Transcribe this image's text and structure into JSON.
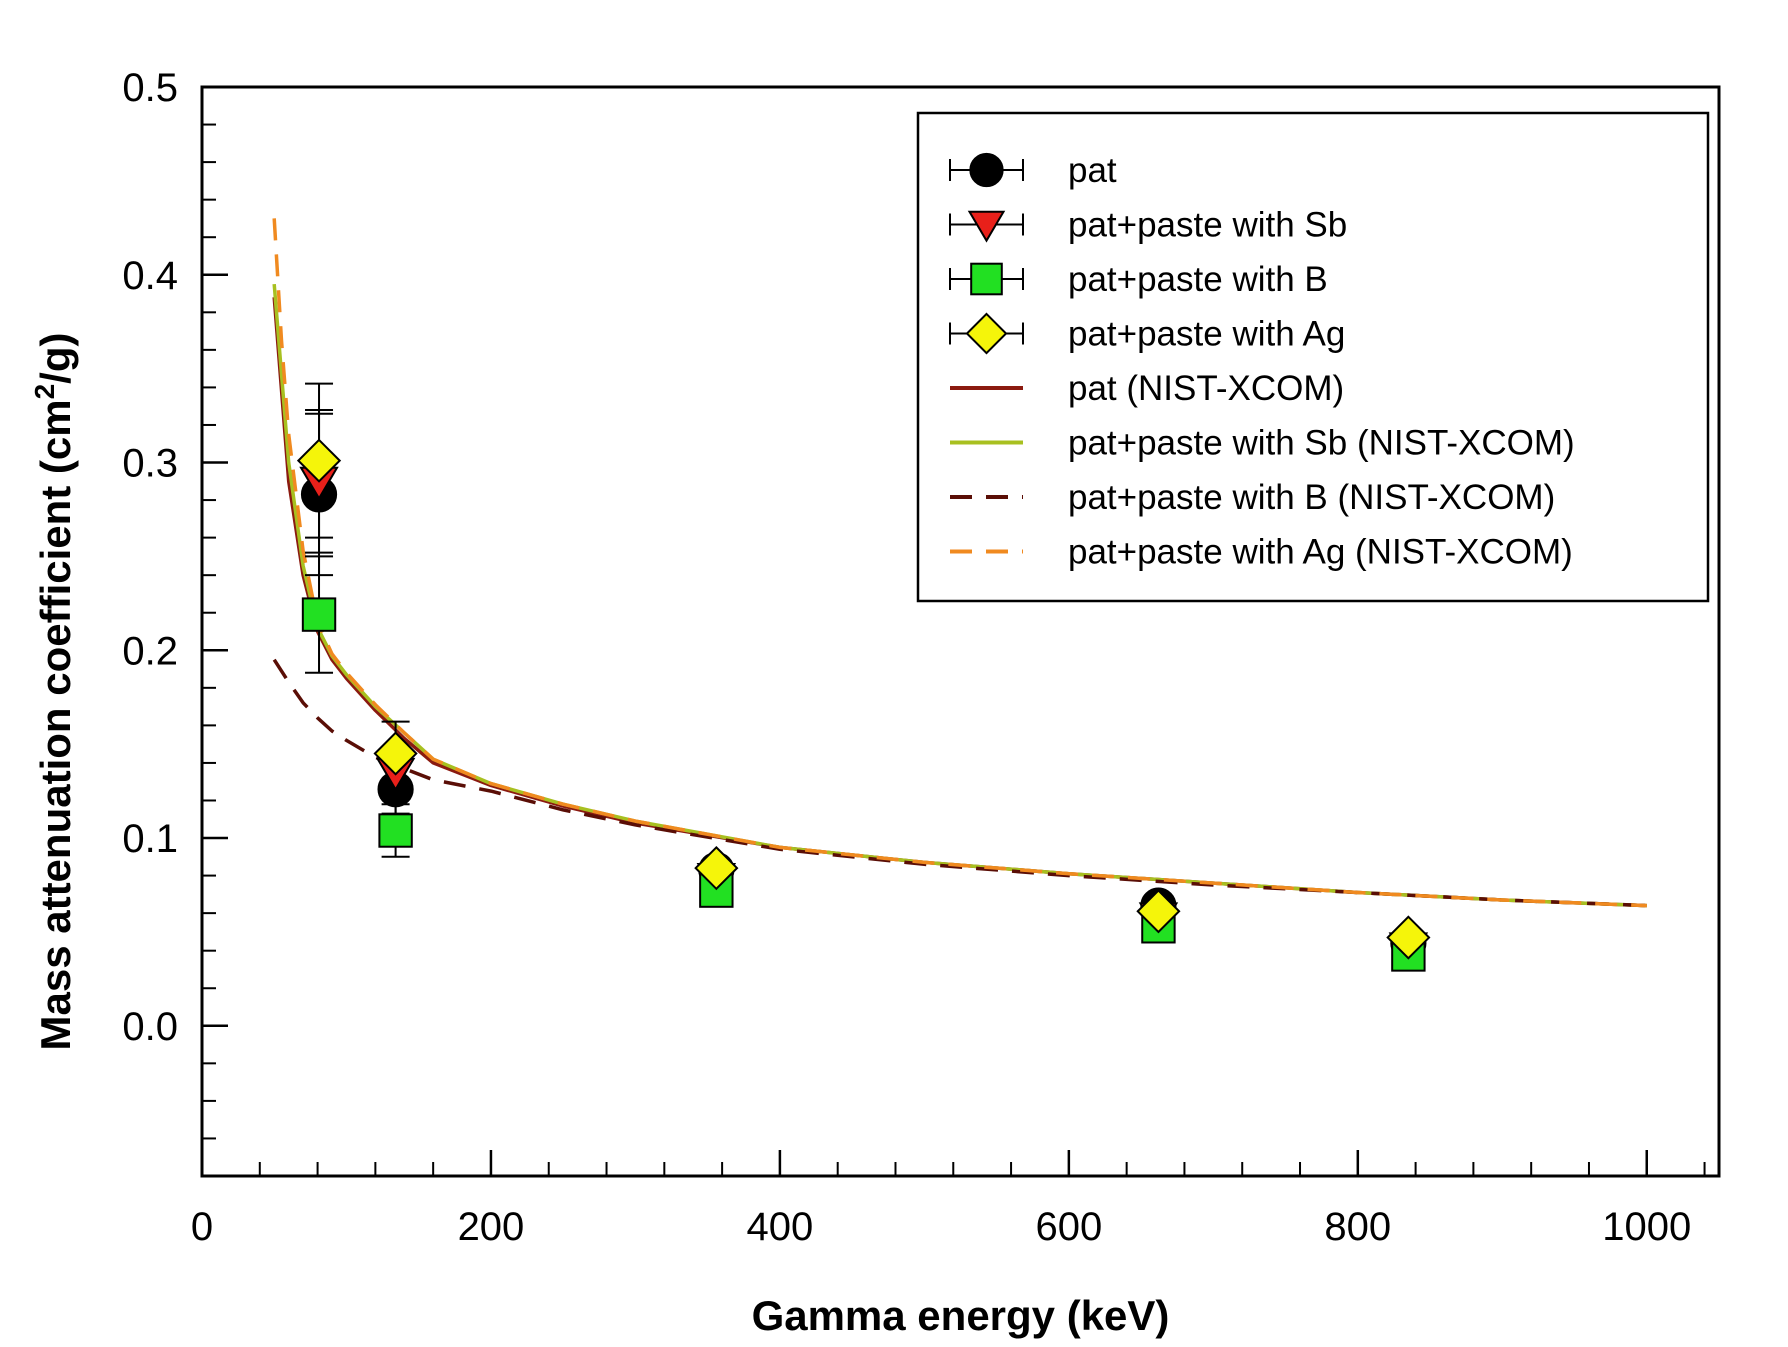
{
  "chart_data": {
    "type": "scatter",
    "title": "",
    "xlabel": "Gamma energy (keV)",
    "ylabel_main": "Mass attenuation coefficient (cm",
    "ylabel_sup": "2",
    "ylabel_end": "/g)",
    "xlim": [
      0,
      1050
    ],
    "ylim": [
      -0.08,
      0.5
    ],
    "x_major_ticks": [
      0,
      200,
      400,
      600,
      800,
      1000
    ],
    "x_tick_labels": [
      "0",
      "200",
      "400",
      "600",
      "800",
      "1000"
    ],
    "x_minor_step": 40,
    "y_major_ticks": [
      0.0,
      0.1,
      0.2,
      0.3,
      0.4,
      0.5
    ],
    "y_tick_labels": [
      "0.0",
      "0.1",
      "0.2",
      "0.3",
      "0.4",
      "0.5"
    ],
    "y_minor_step": 0.02,
    "legend_position": "top-right",
    "points_series": [
      {
        "name": "pat",
        "marker": "circle",
        "color": "#000000",
        "points": [
          {
            "x": 81,
            "y": 0.283,
            "err": 0.043
          },
          {
            "x": 134,
            "y": 0.126,
            "err": 0.013
          },
          {
            "x": 356,
            "y": 0.083,
            "err": 0.004
          },
          {
            "x": 662,
            "y": 0.064,
            "err": 0.003
          },
          {
            "x": 835,
            "y": 0.044,
            "err": 0.002
          }
        ]
      },
      {
        "name": "pat+paste with Sb",
        "marker": "triangle-down",
        "color": "#e8201a",
        "points": [
          {
            "x": 81,
            "y": 0.29,
            "err": 0.038
          },
          {
            "x": 134,
            "y": 0.135,
            "err": 0.012
          },
          {
            "x": 356,
            "y": 0.079,
            "err": 0.004
          },
          {
            "x": 662,
            "y": 0.058,
            "err": 0.003
          },
          {
            "x": 835,
            "y": 0.042,
            "err": 0.002
          }
        ]
      },
      {
        "name": "pat+paste with B",
        "marker": "square",
        "color": "#22e022",
        "points": [
          {
            "x": 81,
            "y": 0.219,
            "err": 0.031
          },
          {
            "x": 134,
            "y": 0.104,
            "err": 0.014
          },
          {
            "x": 356,
            "y": 0.072,
            "err": 0.004
          },
          {
            "x": 662,
            "y": 0.053,
            "err": 0.003
          },
          {
            "x": 835,
            "y": 0.038,
            "err": 0.002
          }
        ]
      },
      {
        "name": "pat+paste with Ag",
        "marker": "diamond",
        "color": "#f5f50a",
        "points": [
          {
            "x": 81,
            "y": 0.301,
            "err": 0.041
          },
          {
            "x": 134,
            "y": 0.145,
            "err": 0.017
          },
          {
            "x": 356,
            "y": 0.084,
            "err": 0.004
          },
          {
            "x": 662,
            "y": 0.061,
            "err": 0.003
          },
          {
            "x": 835,
            "y": 0.047,
            "err": 0.002
          }
        ]
      }
    ],
    "line_series": [
      {
        "name": "pat (NIST-XCOM)",
        "style": "solid",
        "color": "#8b1a10",
        "x": [
          50,
          60,
          70,
          80,
          90,
          100,
          120,
          140,
          160,
          200,
          250,
          300,
          400,
          500,
          600,
          700,
          800,
          900,
          1000
        ],
        "y": [
          0.388,
          0.29,
          0.24,
          0.21,
          0.195,
          0.185,
          0.168,
          0.153,
          0.14,
          0.128,
          0.117,
          0.108,
          0.095,
          0.087,
          0.081,
          0.076,
          0.071,
          0.067,
          0.064
        ]
      },
      {
        "name": "pat+paste with Sb (NIST-XCOM)",
        "style": "solid",
        "color": "#a8c020",
        "x": [
          50,
          60,
          70,
          80,
          90,
          100,
          120,
          140,
          160,
          200,
          250,
          300,
          400,
          500,
          600,
          700,
          800,
          900,
          1000
        ],
        "y": [
          0.395,
          0.3,
          0.245,
          0.212,
          0.197,
          0.187,
          0.17,
          0.156,
          0.142,
          0.129,
          0.118,
          0.109,
          0.095,
          0.087,
          0.081,
          0.076,
          0.071,
          0.067,
          0.064
        ]
      },
      {
        "name": "pat+paste with B (NIST-XCOM)",
        "style": "dashed",
        "color": "#5a0e06",
        "x": [
          50,
          60,
          70,
          80,
          90,
          100,
          120,
          140,
          160,
          200,
          250,
          300,
          400,
          500,
          600,
          700,
          800,
          900,
          1000
        ],
        "y": [
          0.195,
          0.183,
          0.172,
          0.164,
          0.157,
          0.152,
          0.143,
          0.137,
          0.131,
          0.125,
          0.115,
          0.107,
          0.094,
          0.086,
          0.08,
          0.075,
          0.071,
          0.067,
          0.064
        ]
      },
      {
        "name": "pat+paste with Ag (NIST-XCOM)",
        "style": "dashed",
        "color": "#f08a20",
        "x": [
          50,
          55,
          60,
          70,
          80,
          90,
          100,
          120,
          140,
          160,
          200,
          250,
          300,
          400,
          500,
          600,
          700,
          800,
          900,
          1000
        ],
        "y": [
          0.43,
          0.365,
          0.315,
          0.253,
          0.215,
          0.198,
          0.188,
          0.171,
          0.156,
          0.142,
          0.129,
          0.118,
          0.109,
          0.095,
          0.087,
          0.081,
          0.076,
          0.071,
          0.067,
          0.064
        ]
      }
    ]
  }
}
